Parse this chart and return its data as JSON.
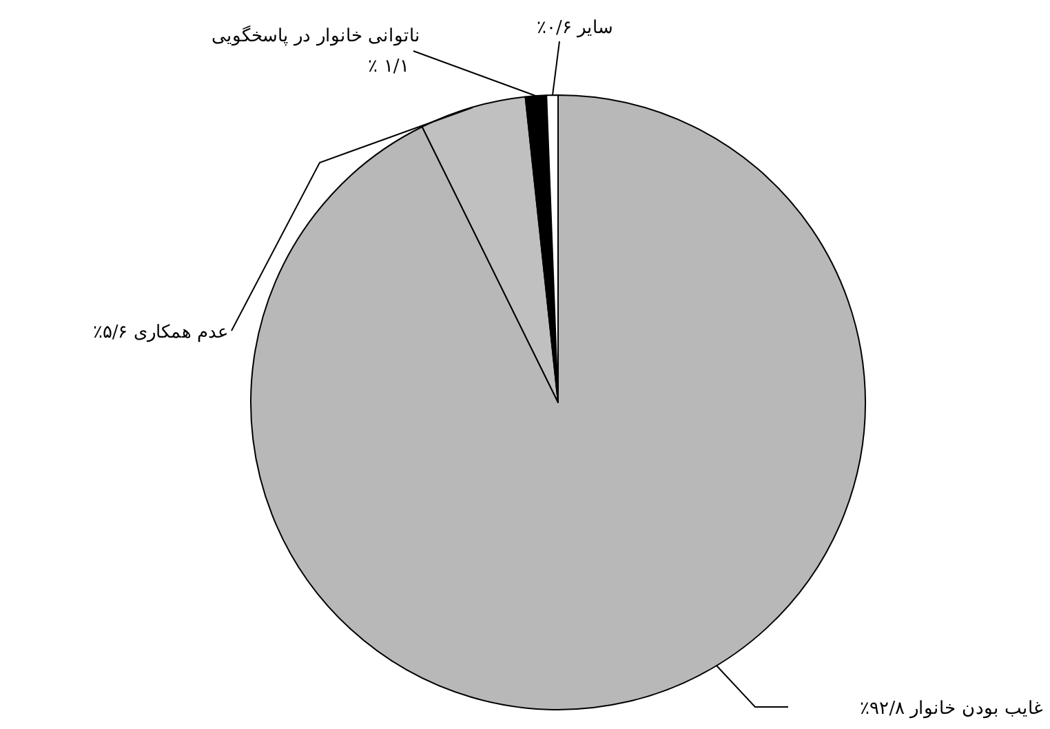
{
  "chart_data": {
    "type": "pie",
    "categories": [
      "غایب بودن خانوار",
      "عدم همکاری",
      "ناتوانی خانوار در پاسخگویی",
      "سایر"
    ],
    "values": [
      92.8,
      5.6,
      1.1,
      0.6
    ],
    "value_labels": [
      "۹۲/۸٪",
      "۵/۶٪",
      "۱/۱ ٪",
      "۰/۶٪"
    ],
    "colors": [
      "#b8b8b8",
      "#c0c0c0",
      "#000000",
      "#ffffff"
    ]
  }
}
